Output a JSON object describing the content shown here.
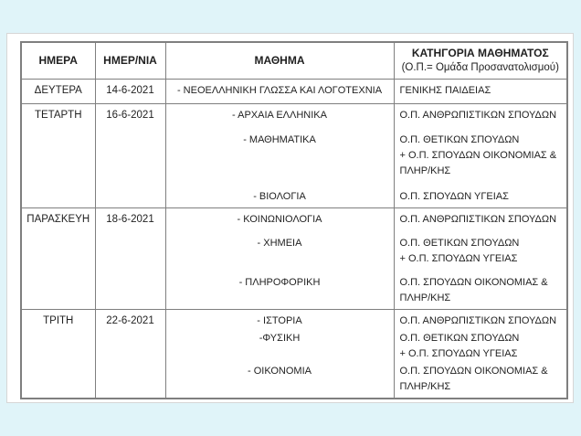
{
  "colors": {
    "canvas_background": "#e0f4f9",
    "page_background": "#ffffff",
    "page_border": "#d6d6d6",
    "table_border": "#7f7f7f",
    "text": "#1f1f1f"
  },
  "table": {
    "headers": [
      {
        "label": "ΗΜΕΡΑ"
      },
      {
        "label": "ΗΜΕΡ/ΝΙΑ"
      },
      {
        "label": "ΜΑΘΗΜΑ"
      },
      {
        "label": "ΚΑΤΗΓΟΡΙΑ ΜΑΘΗΜΑΤΟΣ",
        "sublabel": "(Ο.Π.= Ομάδα Προσανατολισμού)"
      }
    ],
    "rows": [
      {
        "day": "ΔΕΥΤΕΡΑ",
        "date": "14-6-2021",
        "entries": [
          {
            "subject": "- ΝΕΟΕΛΛΗΝΙΚΗ ΓΛΩΣΣΑ ΚΑΙ ΛΟΓΟΤΕΧΝΙΑ",
            "category": "ΓΕΝΙΚΗΣ ΠΑΙΔΕΙΑΣ"
          }
        ]
      },
      {
        "day": "ΤΕΤΑΡΤΗ",
        "date": "16-6-2021",
        "entries": [
          {
            "subject": "- ΑΡΧΑΙΑ ΕΛΛΗΝΙΚΑ",
            "category": "Ο.Π. ΑΝΘΡΩΠΙΣΤΙΚΩΝ ΣΠΟΥΔΩΝ"
          },
          {
            "subject": "- ΜΑΘΗΜΑΤΙΚΑ",
            "category": "Ο.Π. ΘΕΤΙΚΩΝ ΣΠΟΥΔΩΝ\n+ Ο.Π. ΣΠΟΥΔΩΝ ΟΙΚΟΝΟΜΙΑΣ &\nΠΛΗΡ/ΚΗΣ"
          },
          {
            "subject": "- ΒΙΟΛΟΓΙΑ",
            "category": "Ο.Π. ΣΠΟΥΔΩΝ ΥΓΕΙΑΣ"
          }
        ]
      },
      {
        "day": "ΠΑΡΑΣΚΕΥΗ",
        "date": "18-6-2021",
        "entries": [
          {
            "subject": "- ΚΟΙΝΩΝΙΟΛΟΓΙΑ",
            "category": "Ο.Π. ΑΝΘΡΩΠΙΣΤΙΚΩΝ ΣΠΟΥΔΩΝ"
          },
          {
            "subject": "- ΧΗΜΕΙΑ",
            "category": "Ο.Π. ΘΕΤΙΚΩΝ ΣΠΟΥΔΩΝ\n+ Ο.Π. ΣΠΟΥΔΩΝ ΥΓΕΙΑΣ"
          },
          {
            "subject": "- ΠΛΗΡΟΦΟΡΙΚΗ",
            "category": "Ο.Π. ΣΠΟΥΔΩΝ ΟΙΚΟΝΟΜΙΑΣ &\nΠΛΗΡ/ΚΗΣ"
          }
        ]
      },
      {
        "day": "ΤΡΙΤΗ",
        "date": "22-6-2021",
        "entries": [
          {
            "subject": "- ΙΣΤΟΡΙΑ",
            "category": "Ο.Π. ΑΝΘΡΩΠΙΣΤΙΚΩΝ ΣΠΟΥΔΩΝ"
          },
          {
            "subject": "-ΦΥΣΙΚΗ",
            "category": "Ο.Π. ΘΕΤΙΚΩΝ ΣΠΟΥΔΩΝ\n+ Ο.Π. ΣΠΟΥΔΩΝ ΥΓΕΙΑΣ"
          },
          {
            "subject": "- ΟΙΚΟΝΟΜΙΑ",
            "category": "Ο.Π. ΣΠΟΥΔΩΝ ΟΙΚΟΝΟΜΙΑΣ &\nΠΛΗΡ/ΚΗΣ"
          }
        ]
      }
    ]
  }
}
